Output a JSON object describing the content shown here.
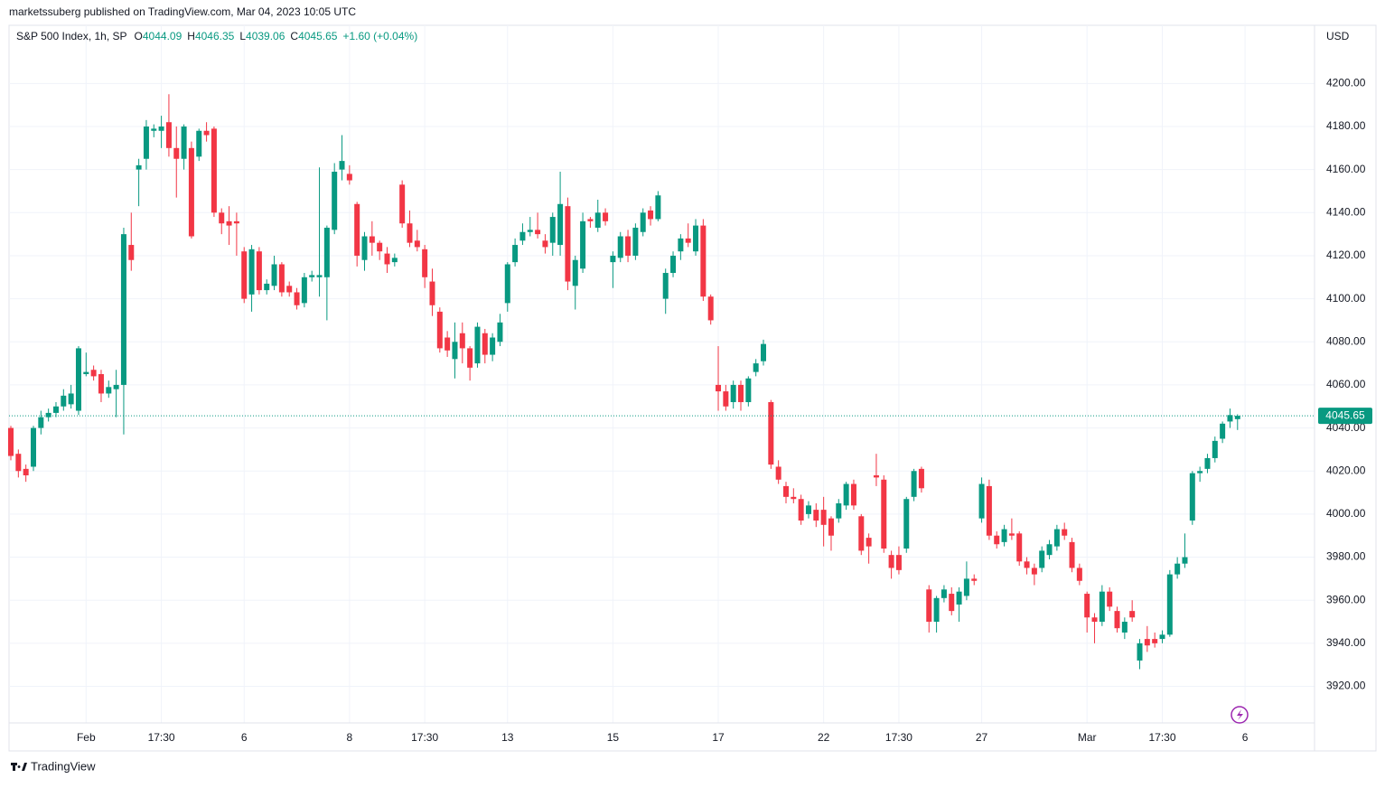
{
  "header": {
    "publisher": "marketssuberg published on TradingView.com, Mar 04, 2023 10:05 UTC",
    "footer": "TradingView"
  },
  "legend": {
    "symbol": "S&P 500 Index, 1h, SP",
    "o_label": "O",
    "o": "4044.09",
    "h_label": "H",
    "h": "4046.35",
    "l_label": "L",
    "l": "4039.06",
    "c_label": "C",
    "c": "4045.65",
    "change": "+1.60 (+0.04%)"
  },
  "chart_data": {
    "type": "candlestick",
    "currency": "USD",
    "up_color": "#089981",
    "down_color": "#f23645",
    "grid": true,
    "last_price": 4045.65,
    "ylim": [
      3890,
      4227
    ],
    "yticks": [
      {
        "value": 3920,
        "label": "3920.00"
      },
      {
        "value": 3940,
        "label": "3940.00"
      },
      {
        "value": 3960,
        "label": "3960.00"
      },
      {
        "value": 3980,
        "label": "3980.00"
      },
      {
        "value": 4000,
        "label": "4000.00"
      },
      {
        "value": 4020,
        "label": "4020.00"
      },
      {
        "value": 4040,
        "label": "4040.00"
      },
      {
        "value": 4060,
        "label": "4060.00"
      },
      {
        "value": 4080,
        "label": "4080.00"
      },
      {
        "value": 4100,
        "label": "4100.00"
      },
      {
        "value": 4120,
        "label": "4120.00"
      },
      {
        "value": 4140,
        "label": "4140.00"
      },
      {
        "value": 4160,
        "label": "4160.00"
      },
      {
        "value": 4180,
        "label": "4180.00"
      },
      {
        "value": 4200,
        "label": "4200.00"
      }
    ],
    "categories": [
      null,
      null,
      null,
      null,
      null,
      null,
      null,
      null,
      null,
      null,
      "Feb",
      null,
      null,
      null,
      null,
      null,
      null,
      null,
      null,
      null,
      "17:30",
      null,
      null,
      null,
      null,
      null,
      null,
      null,
      null,
      null,
      null,
      "6",
      null,
      null,
      null,
      null,
      null,
      null,
      null,
      null,
      null,
      null,
      null,
      null,
      null,
      "8",
      null,
      null,
      null,
      null,
      null,
      null,
      null,
      null,
      null,
      "17:30",
      null,
      null,
      null,
      null,
      null,
      null,
      null,
      null,
      null,
      null,
      "13",
      null,
      null,
      null,
      null,
      null,
      null,
      null,
      null,
      null,
      null,
      null,
      null,
      null,
      "15",
      null,
      null,
      null,
      null,
      null,
      null,
      null,
      null,
      null,
      null,
      null,
      null,
      null,
      "17",
      null,
      null,
      null,
      null,
      null,
      null,
      null,
      null,
      null,
      null,
      null,
      null,
      null,
      "22",
      null,
      null,
      null,
      null,
      null,
      null,
      null,
      null,
      null,
      "17:30",
      null,
      null,
      null,
      null,
      null,
      null,
      null,
      null,
      null,
      null,
      "27",
      null,
      null,
      null,
      null,
      null,
      null,
      null,
      null,
      null,
      null,
      null,
      null,
      null,
      "Mar",
      null,
      null,
      null,
      null,
      null,
      null,
      null,
      null,
      null,
      "17:30",
      null,
      null,
      null,
      null,
      null,
      null,
      null,
      null,
      null,
      null,
      "6"
    ],
    "open": [
      4040,
      4028,
      4021,
      4022,
      4040,
      4045,
      4047,
      4050,
      4051,
      4048,
      4065,
      4067,
      4065,
      4056,
      4058,
      4060,
      4125,
      4160,
      4165,
      4178,
      4178,
      4182,
      4170,
      4165,
      4170,
      4166,
      4178,
      4179,
      4140,
      4136,
      4136,
      4122,
      4102,
      4122,
      4104,
      4106,
      4116,
      4106,
      4103,
      4098,
      4110,
      4110,
      4110,
      4132,
      4160,
      4158,
      4144,
      4118,
      4129,
      4126,
      4121,
      4117,
      4153,
      4135,
      4127,
      4123,
      4108,
      4094,
      4082,
      4072,
      4084,
      4077,
      4070,
      4084,
      4074,
      4080,
      4098,
      4117,
      4127,
      4131,
      4132,
      4127,
      4126,
      4125,
      4143,
      4106,
      4114,
      4137,
      4133,
      4140,
      4117,
      4119,
      4129,
      4120,
      4131,
      4141,
      4137,
      4100,
      4112,
      4122,
      4128,
      4122,
      4134,
      4101,
      4060,
      4057,
      4052,
      4060,
      4052,
      4066,
      4071,
      4052,
      4022,
      4013,
      4008,
      4007,
      4000,
      4002,
      4002,
      3998,
      3998,
      4004,
      4014,
      3999,
      3989,
      4018,
      4016,
      3981,
      3981,
      3984,
      4008,
      4021,
      3965,
      3950,
      3961,
      3963,
      3958,
      3962,
      3970,
      3998,
      4013,
      3990,
      3987,
      3991,
      3991,
      3978,
      3975,
      3975,
      3981,
      3985,
      3993,
      3987,
      3975,
      3963,
      3952,
      3950,
      3964,
      3955,
      3945,
      3955,
      3932,
      3942,
      3942,
      3942,
      3944,
      3972,
      3977,
      3997,
      4019,
      4021,
      4026,
      4035,
      4043,
      4044.09,
      null
    ],
    "high": [
      4041,
      4030,
      4023,
      4041,
      4048,
      4049,
      4052,
      4058,
      4060,
      4078,
      4075,
      4069,
      4067,
      4062,
      4067,
      4133,
      4140,
      4165,
      4183,
      4181,
      4185,
      4195,
      4180,
      4181,
      4173,
      4179,
      4182,
      4180,
      4142,
      4143,
      4140,
      4124,
      4125,
      4124,
      4109,
      4120,
      4117,
      4108,
      4105,
      4112,
      4113,
      4161,
      4134,
      4163,
      4176,
      4162,
      4145,
      4131,
      4136,
      4127,
      4124,
      4121,
      4155,
      4141,
      4132,
      4125,
      4114,
      4096,
      4085,
      4089,
      4089,
      4078,
      4089,
      4086,
      4084,
      4093,
      4117,
      4128,
      4135,
      4138,
      4140,
      4130,
      4140,
      4159,
      4147,
      4120,
      4140,
      4138,
      4146,
      4142,
      4122,
      4131,
      4132,
      4135,
      4142,
      4143,
      4150,
      4114,
      4122,
      4130,
      4135,
      4137,
      4137,
      4102,
      4078,
      4060,
      4062,
      4062,
      4064,
      4072,
      4081,
      4053,
      4025,
      4015,
      4012,
      4009,
      4006,
      4005,
      4008,
      3999,
      4007,
      4015,
      4016,
      4000,
      3991,
      4028,
      4018,
      3983,
      3985,
      4008,
      4021,
      4022,
      3967,
      3962,
      3967,
      3966,
      3966,
      3978,
      3972,
      4017,
      4016,
      3992,
      3995,
      3998,
      3992,
      3980,
      3977,
      3985,
      3988,
      3995,
      3996,
      3989,
      3977,
      3964,
      3954,
      3967,
      3966,
      3957,
      3952,
      3960,
      3942,
      3948,
      3945,
      3946,
      3974,
      3980,
      3991,
      4020,
      4022,
      4028,
      4036,
      4043,
      4049,
      4046.35,
      null
    ],
    "low": [
      4025,
      4017,
      4015,
      4020,
      4037,
      4043,
      4045,
      4048,
      4049,
      4046,
      4064,
      4062,
      4052,
      4054,
      4045,
      4037,
      4113,
      4143,
      4160,
      4175,
      4170,
      4166,
      4147,
      4160,
      4128,
      4164,
      4173,
      4138,
      4130,
      4125,
      4120,
      4098,
      4094,
      4102,
      4102,
      4104,
      4101,
      4101,
      4095,
      4096,
      4108,
      4101,
      4090,
      4130,
      4155,
      4153,
      4115,
      4113,
      4120,
      4118,
      4112,
      4115,
      4133,
      4124,
      4122,
      4105,
      4092,
      4075,
      4073,
      4063,
      4070,
      4062,
      4068,
      4070,
      4071,
      4078,
      4094,
      4115,
      4125,
      4129,
      4128,
      4121,
      4120,
      4120,
      4104,
      4095,
      4112,
      4133,
      4131,
      4134,
      4105,
      4117,
      4117,
      4118,
      4129,
      4134,
      4136,
      4093,
      4110,
      4118,
      4124,
      4120,
      4099,
      4088,
      4048,
      4048,
      4049,
      4048,
      4050,
      4064,
      4069,
      4021,
      4014,
      4005,
      4005,
      3995,
      3998,
      3994,
      3985,
      3983,
      3996,
      4002,
      4002,
      3981,
      3977,
      4013,
      3982,
      3970,
      3972,
      3982,
      4006,
      4010,
      3945,
      3945,
      3959,
      3953,
      3950,
      3960,
      3967,
      3996,
      3988,
      3984,
      3985,
      3988,
      3976,
      3972,
      3967,
      3973,
      3979,
      3983,
      3988,
      3973,
      3967,
      3945,
      3940,
      3948,
      3955,
      3945,
      3942,
      3950,
      3928,
      3936,
      3938,
      3940,
      3943,
      3970,
      3975,
      3995,
      4015,
      4019,
      4024,
      4033,
      4040,
      4039.06,
      null
    ],
    "close": [
      4027,
      4020,
      4018,
      4040,
      4045,
      4047,
      4050,
      4055,
      4056,
      4077,
      4066,
      4064,
      4056,
      4059,
      4060,
      4130,
      4118,
      4162,
      4180,
      4179,
      4180,
      4170,
      4165,
      4180,
      4129,
      4178,
      4176,
      4140,
      4135,
      4134,
      4135,
      4100,
      4123,
      4104,
      4107,
      4116,
      4103,
      4103,
      4097,
      4110,
      4111,
      4111,
      4133,
      4159,
      4164,
      4155,
      4120,
      4129,
      4126,
      4122,
      4116,
      4119,
      4135,
      4126,
      4124,
      4110,
      4097,
      4077,
      4076,
      4080,
      4077,
      4068,
      4087,
      4074,
      4082,
      4089,
      4116,
      4125,
      4131,
      4132,
      4130,
      4124,
      4138,
      4144,
      4108,
      4118,
      4136,
      4136,
      4140,
      4136,
      4120,
      4129,
      4120,
      4133,
      4140,
      4137,
      4148,
      4112,
      4120,
      4128,
      4126,
      4134,
      4101,
      4090,
      4057,
      4050,
      4060,
      4052,
      4063,
      4070,
      4079,
      4023,
      4016,
      4008,
      4007,
      3997,
      4004,
      3997,
      3995,
      3990,
      4005,
      4014,
      4004,
      3983,
      3985,
      4017,
      3984,
      3975,
      3974,
      4007,
      4020,
      4012,
      3950,
      3961,
      3965,
      3955,
      3964,
      3970,
      3969,
      4014,
      3990,
      3986,
      3993,
      3990,
      3978,
      3975,
      3972,
      3983,
      3986,
      3993,
      3990,
      3975,
      3969,
      3952,
      3950,
      3964,
      3957,
      3947,
      3950,
      3952,
      3940,
      3939,
      3940,
      3944,
      3972,
      3977,
      3980,
      4019,
      4020,
      4026,
      4034,
      4042,
      4046,
      4045.65,
      null
    ]
  }
}
